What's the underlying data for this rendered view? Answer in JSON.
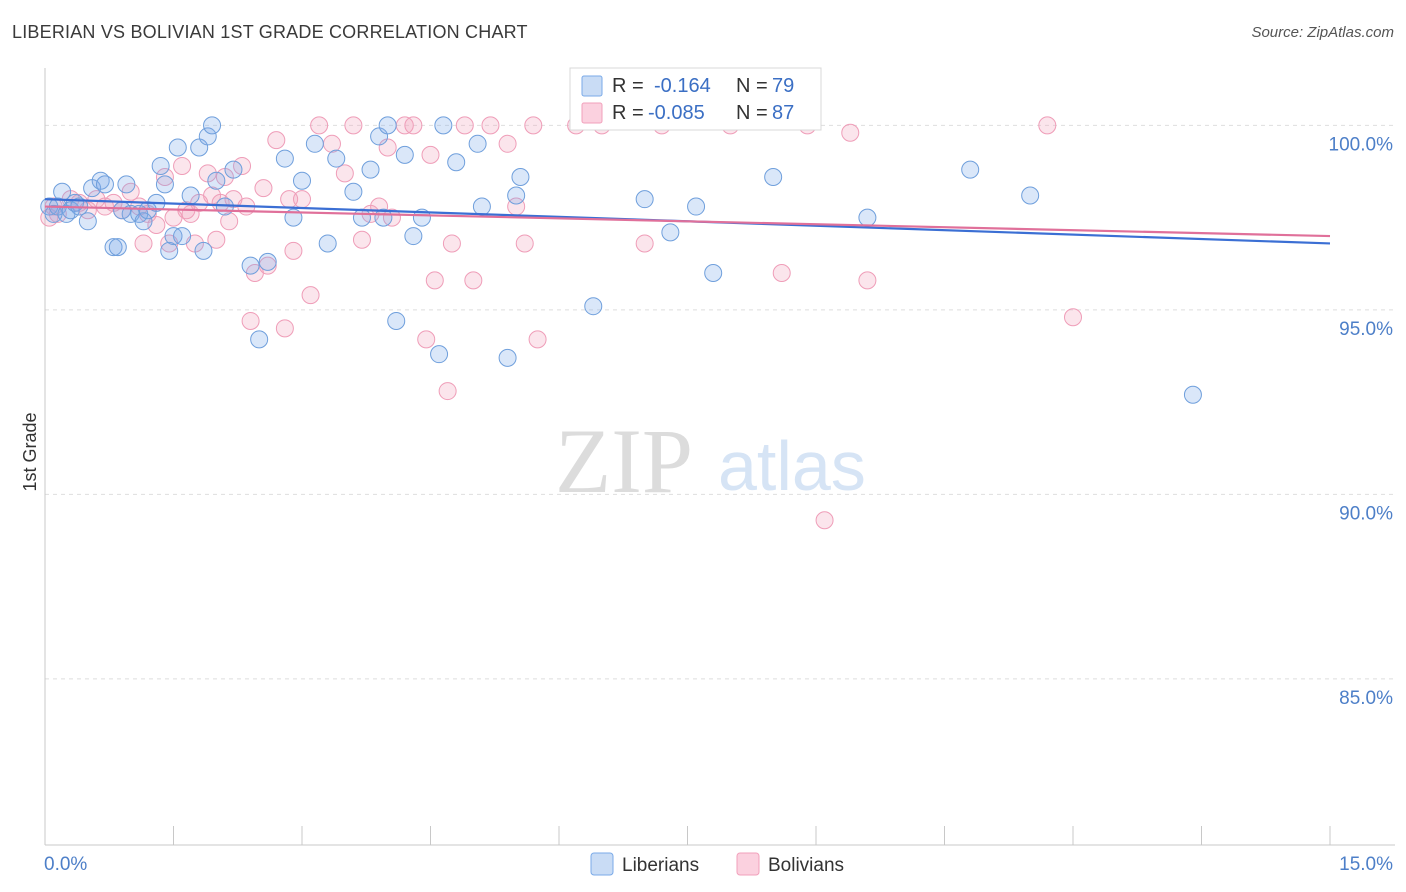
{
  "title": "LIBERIAN VS BOLIVIAN 1ST GRADE CORRELATION CHART",
  "source": "Source: ZipAtlas.com",
  "watermark": {
    "zip": "ZIP",
    "atlas": "atlas"
  },
  "colors": {
    "liberians": "#7aaae8",
    "liberians_line": "#3b6fd4",
    "bolivians": "#f2a0bb",
    "bolivians_line": "#e0709a",
    "tick_label": "#4d7fc8"
  },
  "legend": {
    "rows": [
      {
        "r_label": "R =",
        "r_value": "-0.164",
        "n_label": "N =",
        "n_value": "79"
      },
      {
        "r_label": "R =",
        "r_value": "-0.085",
        "n_label": "N =",
        "n_value": "87"
      }
    ]
  },
  "chart_data": {
    "type": "scatter",
    "title": "LIBERIAN VS BOLIVIAN 1ST GRADE CORRELATION CHART",
    "xlabel": "",
    "ylabel": "1st Grade",
    "xlim": [
      0,
      15
    ],
    "ylim": [
      80.5,
      101.5
    ],
    "x_tick_labels": [
      "0.0%",
      "15.0%"
    ],
    "y_ticks": [
      85,
      90,
      95,
      100
    ],
    "y_tick_labels": [
      "85.0%",
      "90.0%",
      "95.0%",
      "100.0%"
    ],
    "grid": true,
    "legend_position": "top-center",
    "series": [
      {
        "name": "Liberians",
        "r": -0.164,
        "n": 79,
        "trend": [
          [
            0,
            98.0
          ],
          [
            15,
            96.8
          ]
        ],
        "points": [
          [
            0.05,
            97.8
          ],
          [
            0.1,
            97.6
          ],
          [
            0.15,
            97.8
          ],
          [
            0.2,
            98.2
          ],
          [
            0.25,
            97.6
          ],
          [
            0.3,
            97.7
          ],
          [
            0.35,
            97.9
          ],
          [
            0.4,
            97.8
          ],
          [
            0.5,
            97.4
          ],
          [
            0.55,
            98.3
          ],
          [
            0.65,
            98.5
          ],
          [
            0.7,
            98.4
          ],
          [
            0.8,
            96.7
          ],
          [
            0.85,
            96.7
          ],
          [
            0.9,
            97.7
          ],
          [
            0.95,
            98.4
          ],
          [
            1.0,
            97.6
          ],
          [
            1.1,
            97.6
          ],
          [
            1.15,
            97.4
          ],
          [
            1.2,
            97.7
          ],
          [
            1.3,
            97.9
          ],
          [
            1.35,
            98.9
          ],
          [
            1.4,
            98.4
          ],
          [
            1.45,
            96.6
          ],
          [
            1.5,
            97.0
          ],
          [
            1.55,
            99.4
          ],
          [
            1.6,
            97.0
          ],
          [
            1.7,
            98.1
          ],
          [
            1.8,
            99.4
          ],
          [
            1.85,
            96.6
          ],
          [
            1.9,
            99.7
          ],
          [
            1.95,
            100.0
          ],
          [
            2.0,
            98.5
          ],
          [
            2.1,
            97.8
          ],
          [
            2.2,
            98.8
          ],
          [
            2.4,
            96.2
          ],
          [
            2.5,
            94.2
          ],
          [
            2.6,
            96.3
          ],
          [
            2.8,
            99.1
          ],
          [
            2.9,
            97.5
          ],
          [
            3.0,
            98.5
          ],
          [
            3.15,
            99.5
          ],
          [
            3.3,
            96.8
          ],
          [
            3.4,
            99.1
          ],
          [
            3.6,
            98.2
          ],
          [
            3.7,
            97.5
          ],
          [
            3.8,
            98.8
          ],
          [
            3.9,
            99.7
          ],
          [
            3.95,
            97.5
          ],
          [
            4.0,
            100.0
          ],
          [
            4.1,
            94.7
          ],
          [
            4.2,
            99.2
          ],
          [
            4.3,
            97.0
          ],
          [
            4.4,
            97.5
          ],
          [
            4.6,
            93.8
          ],
          [
            4.65,
            100.0
          ],
          [
            4.8,
            99.0
          ],
          [
            5.05,
            99.5
          ],
          [
            5.1,
            97.8
          ],
          [
            5.4,
            93.7
          ],
          [
            5.5,
            98.1
          ],
          [
            5.55,
            98.6
          ],
          [
            6.4,
            95.1
          ],
          [
            7.0,
            98.0
          ],
          [
            7.3,
            97.1
          ],
          [
            7.6,
            97.8
          ],
          [
            7.8,
            96.0
          ],
          [
            8.5,
            98.6
          ],
          [
            9.6,
            97.5
          ],
          [
            10.8,
            98.8
          ],
          [
            11.5,
            98.1
          ],
          [
            13.4,
            92.7
          ]
        ]
      },
      {
        "name": "Bolivians",
        "r": -0.085,
        "n": 87,
        "trend": [
          [
            0,
            97.8
          ],
          [
            15,
            97.0
          ]
        ],
        "points": [
          [
            0.05,
            97.5
          ],
          [
            0.1,
            97.8
          ],
          [
            0.15,
            97.6
          ],
          [
            0.3,
            98.0
          ],
          [
            0.4,
            97.9
          ],
          [
            0.5,
            97.7
          ],
          [
            0.6,
            98.0
          ],
          [
            0.7,
            97.8
          ],
          [
            0.8,
            97.9
          ],
          [
            0.9,
            97.7
          ],
          [
            1.0,
            98.2
          ],
          [
            1.1,
            97.8
          ],
          [
            1.15,
            96.8
          ],
          [
            1.2,
            97.6
          ],
          [
            1.3,
            97.3
          ],
          [
            1.4,
            98.6
          ],
          [
            1.45,
            96.8
          ],
          [
            1.5,
            97.5
          ],
          [
            1.6,
            98.9
          ],
          [
            1.65,
            97.7
          ],
          [
            1.7,
            97.6
          ],
          [
            1.75,
            96.8
          ],
          [
            1.8,
            97.9
          ],
          [
            1.9,
            98.7
          ],
          [
            1.95,
            98.1
          ],
          [
            2.0,
            96.9
          ],
          [
            2.05,
            97.9
          ],
          [
            2.1,
            98.6
          ],
          [
            2.15,
            97.4
          ],
          [
            2.2,
            98.0
          ],
          [
            2.3,
            98.9
          ],
          [
            2.35,
            97.8
          ],
          [
            2.4,
            94.7
          ],
          [
            2.45,
            96.0
          ],
          [
            2.55,
            98.3
          ],
          [
            2.6,
            96.2
          ],
          [
            2.7,
            99.6
          ],
          [
            2.8,
            94.5
          ],
          [
            2.85,
            98.0
          ],
          [
            2.9,
            96.6
          ],
          [
            3.0,
            98.0
          ],
          [
            3.1,
            95.4
          ],
          [
            3.2,
            100.0
          ],
          [
            3.35,
            99.5
          ],
          [
            3.5,
            98.7
          ],
          [
            3.6,
            100.0
          ],
          [
            3.7,
            96.9
          ],
          [
            3.8,
            97.6
          ],
          [
            3.9,
            97.8
          ],
          [
            4.0,
            99.4
          ],
          [
            4.05,
            97.5
          ],
          [
            4.2,
            100.0
          ],
          [
            4.3,
            100.0
          ],
          [
            4.45,
            94.2
          ],
          [
            4.5,
            99.2
          ],
          [
            4.55,
            95.8
          ],
          [
            4.7,
            92.8
          ],
          [
            4.75,
            96.8
          ],
          [
            4.9,
            100.0
          ],
          [
            5.0,
            95.8
          ],
          [
            5.2,
            100.0
          ],
          [
            5.4,
            99.5
          ],
          [
            5.5,
            97.8
          ],
          [
            5.6,
            96.8
          ],
          [
            5.7,
            100.0
          ],
          [
            5.75,
            94.2
          ],
          [
            6.2,
            100.0
          ],
          [
            6.5,
            100.0
          ],
          [
            7.0,
            96.8
          ],
          [
            7.2,
            100.0
          ],
          [
            8.0,
            100.0
          ],
          [
            8.6,
            96.0
          ],
          [
            8.9,
            100.0
          ],
          [
            9.1,
            89.3
          ],
          [
            9.4,
            99.8
          ],
          [
            9.6,
            95.8
          ],
          [
            11.7,
            100.0
          ],
          [
            12.0,
            94.8
          ]
        ]
      }
    ]
  }
}
